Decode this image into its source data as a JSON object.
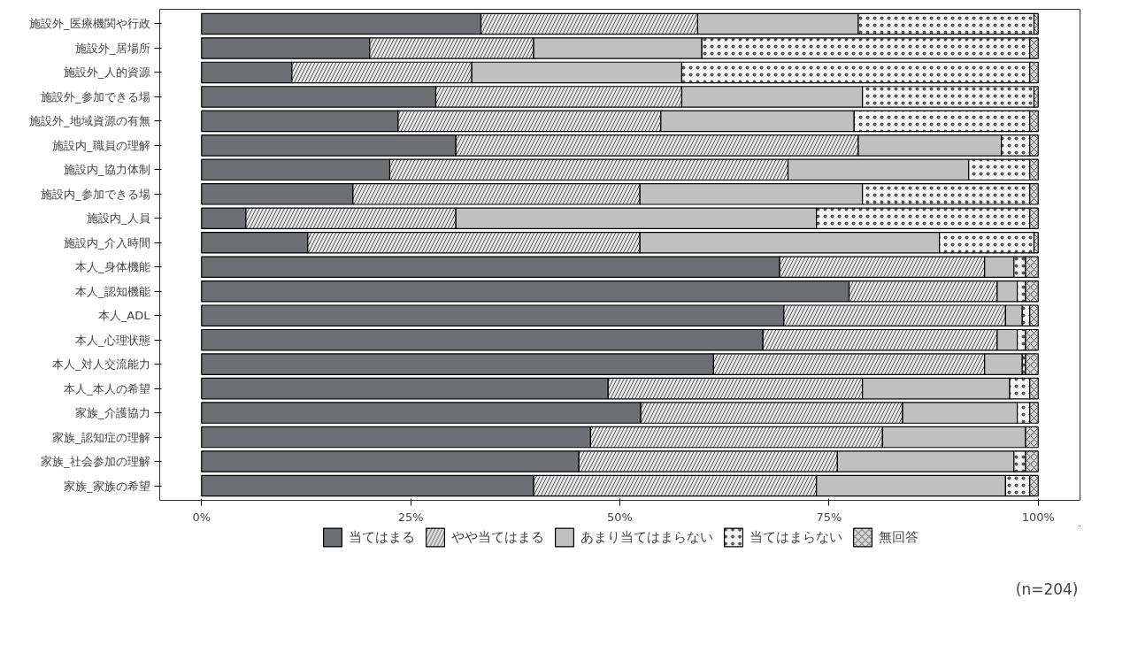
{
  "chart_data": {
    "type": "bar",
    "orientation": "horizontal",
    "stacked": true,
    "categories": [
      "施設外_医療機関や行政",
      "施設外_居場所",
      "施設外_人的資源",
      "施設外_参加できる場",
      "施設外_地域資源の有無",
      "施設内_職員の理解",
      "施設内_協力体制",
      "施設内_参加できる場",
      "施設内_人員",
      "施設内_介入時間",
      "本人_身体機能",
      "本人_認知機能",
      "本人_ADL",
      "本人_心理状態",
      "本人_対人交流能力",
      "本人_本人の希望",
      "家族_介護協力",
      "家族_認知症の理解",
      "家族_社会参加の理解",
      "家族_家族の希望"
    ],
    "series": [
      {
        "name": "当てはまる",
        "color": "#6e6f72",
        "values": [
          33.4,
          20.1,
          10.8,
          28.0,
          23.5,
          30.4,
          22.5,
          18.1,
          5.3,
          12.7,
          69.1,
          77.4,
          69.6,
          67.1,
          61.2,
          48.6,
          52.5,
          46.5,
          45.1,
          39.7
        ]
      },
      {
        "name": "やや当てはまる",
        "color": "#e6e6e6",
        "values": [
          25.9,
          19.6,
          21.5,
          29.4,
          31.4,
          48.1,
          47.6,
          34.3,
          25.1,
          39.7,
          24.5,
          17.7,
          26.5,
          28.0,
          32.4,
          30.4,
          31.3,
          34.9,
          30.9,
          33.8
        ]
      },
      {
        "name": "あまり当てはまらない",
        "color": "#c0c0c0",
        "values": [
          19.2,
          20.1,
          25.1,
          21.6,
          23.1,
          17.1,
          21.6,
          26.6,
          43.1,
          35.8,
          3.5,
          2.4,
          2.0,
          2.4,
          4.5,
          17.6,
          13.7,
          17.1,
          21.1,
          22.6
        ]
      },
      {
        "name": "当てはまらない",
        "color": "#f5f5f5",
        "values": [
          21.0,
          39.2,
          41.6,
          20.5,
          21.0,
          3.4,
          7.3,
          20.0,
          25.5,
          11.3,
          1.4,
          1.0,
          0.9,
          1.0,
          0.4,
          2.4,
          1.5,
          0,
          1.4,
          2.9
        ]
      },
      {
        "name": "無回答",
        "color": "#d9d9d9",
        "values": [
          0.5,
          1.0,
          1.0,
          0.5,
          1.0,
          1.0,
          1.0,
          1.0,
          1.0,
          0.5,
          1.5,
          1.5,
          1.0,
          1.5,
          1.5,
          1.0,
          1.0,
          1.5,
          1.5,
          1.0
        ]
      }
    ],
    "xlim": [
      -5,
      105
    ],
    "xticks": [
      {
        "value": 0,
        "label": "0%"
      },
      {
        "value": 25,
        "label": "25%"
      },
      {
        "value": 50,
        "label": "50%"
      },
      {
        "value": 75,
        "label": "75%"
      },
      {
        "value": 100,
        "label": "100%"
      }
    ],
    "grid": false,
    "legend": "bottom",
    "annotations": [
      "(n=204)"
    ]
  }
}
